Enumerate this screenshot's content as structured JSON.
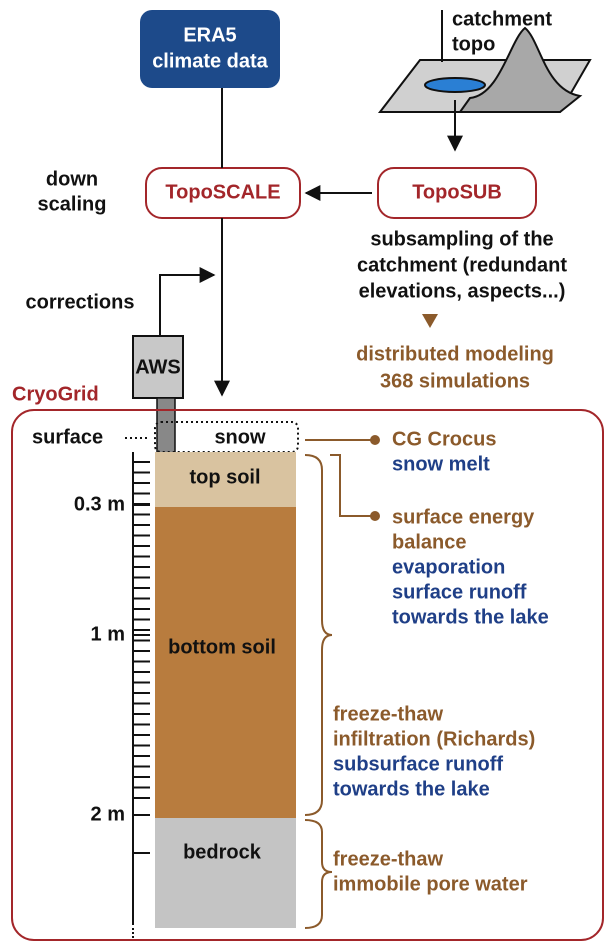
{
  "sources": {
    "era5": [
      "ERA5",
      "climate data"
    ],
    "catchment": [
      "catchment",
      "topo"
    ],
    "downscaling": [
      "down",
      "scaling"
    ],
    "toposcale": "TopoSCALE",
    "toposub": "TopoSUB",
    "subsampling": [
      "subsampling of the",
      "catchment (redundant",
      "elevations, aspects...)"
    ],
    "distributed": [
      "distributed modeling",
      "368 simulations"
    ],
    "corrections": "corrections",
    "aws": "AWS"
  },
  "cryogrid": {
    "title": "CryoGrid",
    "surface": "surface",
    "layers": [
      "snow",
      "top soil",
      "bottom soil",
      "bedrock"
    ],
    "depths": [
      "0.3 m",
      "1 m",
      "2 m"
    ],
    "processes": [
      {
        "brown": [
          "CG Crocus"
        ],
        "blue": [
          "snow melt"
        ]
      },
      {
        "brown": [
          "surface energy",
          "balance"
        ],
        "blue": [
          "evaporation",
          "surface runoff",
          "towards the lake"
        ]
      },
      {
        "brown": [
          "freeze-thaw",
          "infiltration (Richards)"
        ],
        "blue": [
          "subsurface runoff",
          "towards the lake"
        ]
      },
      {
        "brown": [
          "freeze-thaw",
          "immobile pore water"
        ],
        "blue": []
      }
    ]
  }
}
